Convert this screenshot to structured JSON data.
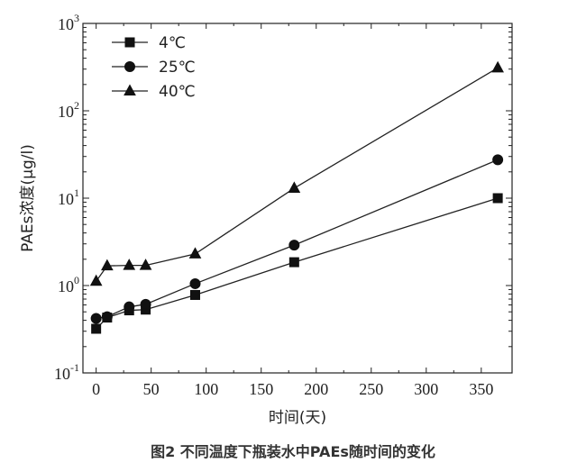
{
  "caption": "图2  不同温度下瓶装水中PAEs随时间的变化",
  "chart_data": {
    "type": "line",
    "xlabel": "时间(天)",
    "ylabel": "PAEs浓度(μg/l)",
    "y_scale": "log",
    "xlim": [
      -12,
      378
    ],
    "ylim": [
      0.1,
      1000
    ],
    "x_ticks": [
      0,
      50,
      100,
      150,
      200,
      250,
      300,
      350
    ],
    "y_ticks": [
      {
        "value": 0.1,
        "base": "10",
        "exp": "-1"
      },
      {
        "value": 1,
        "base": "10",
        "exp": "0"
      },
      {
        "value": 10,
        "base": "10",
        "exp": "1"
      },
      {
        "value": 100,
        "base": "10",
        "exp": "2"
      },
      {
        "value": 1000,
        "base": "10",
        "exp": "3"
      }
    ],
    "legend_position": "top-left",
    "series": [
      {
        "name": "4℃",
        "marker": "square",
        "x": [
          0,
          10,
          30,
          45,
          90,
          180,
          365
        ],
        "y": [
          0.32,
          0.43,
          0.52,
          0.53,
          0.78,
          1.85,
          10.0
        ]
      },
      {
        "name": "25℃",
        "marker": "circle",
        "x": [
          0,
          10,
          30,
          45,
          90,
          180,
          365
        ],
        "y": [
          0.42,
          0.44,
          0.57,
          0.61,
          1.05,
          2.9,
          27.5
        ]
      },
      {
        "name": "40℃",
        "marker": "triangle",
        "x": [
          0,
          10,
          30,
          45,
          90,
          180,
          365
        ],
        "y": [
          1.12,
          1.68,
          1.7,
          1.7,
          2.3,
          13.0,
          310.0
        ]
      }
    ]
  }
}
